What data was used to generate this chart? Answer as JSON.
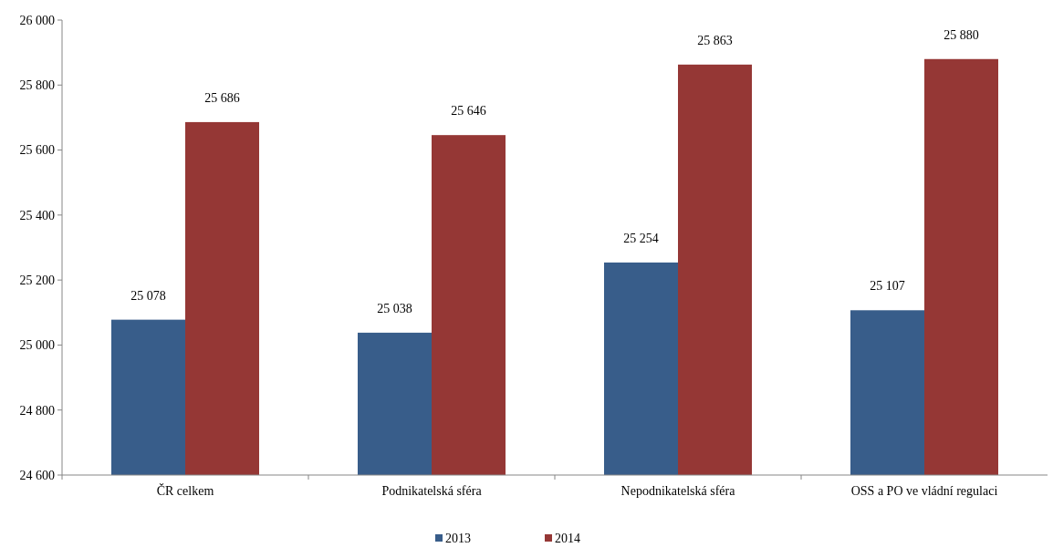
{
  "chart_data": {
    "type": "bar",
    "categories": [
      "ČR celkem",
      "Podnikatelská sféra",
      "Nepodnikatelská sféra",
      "OSS a PO ve vládní regulaci"
    ],
    "series": [
      {
        "name": "2013",
        "color": "#385d8a",
        "values": [
          25078,
          25038,
          25254,
          25107
        ],
        "value_labels": [
          "25 078",
          "25 038",
          "25 254",
          "25 107"
        ]
      },
      {
        "name": "2014",
        "color": "#953735",
        "values": [
          25686,
          25646,
          25863,
          25880
        ],
        "value_labels": [
          "25 686",
          "25 646",
          "25 863",
          "25 880"
        ]
      }
    ],
    "ylim": [
      24600,
      26000
    ],
    "yticks": [
      {
        "value": 24600,
        "label": "24 600"
      },
      {
        "value": 24800,
        "label": "24 800"
      },
      {
        "value": 25000,
        "label": "25 000"
      },
      {
        "value": 25200,
        "label": "25 200"
      },
      {
        "value": 25400,
        "label": "25 400"
      },
      {
        "value": 25600,
        "label": "25 600"
      },
      {
        "value": 25800,
        "label": "25 800"
      },
      {
        "value": 26000,
        "label": "26 000"
      }
    ],
    "grid": false,
    "legend": "bottom"
  }
}
